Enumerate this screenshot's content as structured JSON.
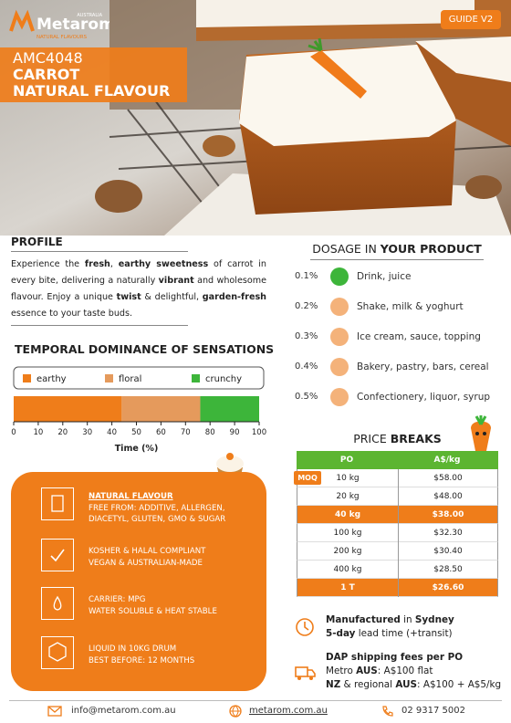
{
  "header": {
    "brand": "Metarom",
    "brand_region": "AUSTRALIA",
    "brand_tagline": "NATURAL FLAVOURS",
    "guide": "GUIDE V2",
    "code": "AMC4048",
    "name_lines": [
      "CARROT",
      "NATURAL FLAVOUR"
    ]
  },
  "profile": {
    "title": "PROFILE",
    "runs": [
      {
        "text": "Experience the "
      },
      {
        "text": "fresh",
        "bold": true
      },
      {
        "text": ", "
      },
      {
        "text": "earthy sweetness",
        "bold": true
      },
      {
        "text": " of carrot in every bite, delivering a naturally "
      },
      {
        "text": "vibrant",
        "bold": true
      },
      {
        "text": " and wholesome flavour. Enjoy a unique "
      },
      {
        "text": "twist",
        "bold": true
      },
      {
        "text": " & delightful, "
      },
      {
        "text": "garden-fresh",
        "bold": true
      },
      {
        "text": " essence to your taste buds."
      }
    ]
  },
  "tds": {
    "type": "bar",
    "stacked": true,
    "title": "TEMPORAL DOMINANCE OF SENSATIONS",
    "series": [
      {
        "name": "earthy",
        "color": "#ef7d1a",
        "values": [
          44
        ]
      },
      {
        "name": "floral",
        "color": "#e59a5c",
        "values": [
          32
        ]
      },
      {
        "name": "crunchy",
        "color": "#3db53a",
        "values": [
          24
        ]
      }
    ],
    "xlim": [
      0,
      100
    ],
    "xticks": [
      0,
      10,
      20,
      30,
      40,
      50,
      60,
      70,
      80,
      90,
      100
    ],
    "xlabel": "Time (%)"
  },
  "features": [
    {
      "lines": [
        "NATURAL FLAVOUR",
        "FREE FROM: ADDITIVE, ALLERGEN,",
        "DIACETYL,  GLUTEN, GMO & SUGAR"
      ]
    },
    {
      "lines": [
        "KOSHER & HALAL COMPLIANT",
        "VEGAN & AUSTRALIAN-MADE"
      ]
    },
    {
      "lines": [
        "CARRIER: MPG",
        "WATER SOLUBLE & HEAT STABLE"
      ]
    },
    {
      "lines": [
        "LIQUID IN 10KG DRUM",
        "BEST BEFORE: 12 MONTHS"
      ]
    }
  ],
  "dosage": {
    "title_runs": [
      {
        "text": "DOSAGE IN "
      },
      {
        "text": "YOUR PRODUCT",
        "bold": true
      }
    ],
    "items": [
      {
        "dose": "0.1%",
        "use": "Drink, juice"
      },
      {
        "dose": "0.2%",
        "use": "Shake, milk & yoghurt"
      },
      {
        "dose": "0.3%",
        "use": "Ice cream, sauce, topping"
      },
      {
        "dose": "0.4%",
        "use": "Bakery, pastry, bars, cereal"
      },
      {
        "dose": "0.5%",
        "use": "Confectionery, liquor, syrup"
      }
    ]
  },
  "prices": {
    "title_runs": [
      {
        "text": "PRICE "
      },
      {
        "text": "BREAKS",
        "bold": true
      }
    ],
    "columns": [
      "PO",
      "A$/kg"
    ],
    "rows": [
      {
        "po": "10 kg",
        "price": "$58.00",
        "highlight": false,
        "tag": "MOQ"
      },
      {
        "po": "20 kg",
        "price": "$48.00",
        "highlight": false
      },
      {
        "po": "40 kg",
        "price": "$38.00",
        "highlight": true
      },
      {
        "po": "100 kg",
        "price": "$32.30",
        "highlight": false
      },
      {
        "po": "200 kg",
        "price": "$30.40",
        "highlight": false
      },
      {
        "po": "400 kg",
        "price": "$28.50",
        "highlight": false
      },
      {
        "po": "1 T",
        "price": "$26.60",
        "highlight": true
      }
    ]
  },
  "shipping": {
    "lead": [
      {
        "runs": [
          {
            "text": "Manufactured",
            "bold": true
          },
          {
            "text": " in "
          },
          {
            "text": "Sydney",
            "bold": true
          }
        ]
      },
      {
        "runs": [
          {
            "text": "5-day",
            "bold": true
          },
          {
            "text": " lead time (+transit)"
          }
        ]
      }
    ],
    "fees": [
      {
        "runs": [
          {
            "text": "DAP shipping fees per PO",
            "bold": true
          }
        ]
      },
      {
        "runs": [
          {
            "text": "Metro "
          },
          {
            "text": "AUS",
            "bold": true
          },
          {
            "text": ": A$100 flat"
          }
        ]
      },
      {
        "runs": [
          {
            "text": "NZ",
            "bold": true
          },
          {
            "text": " & regional "
          },
          {
            "text": "AUS",
            "bold": true
          },
          {
            "text": ": A$100 + A$5/kg"
          }
        ]
      }
    ]
  },
  "footer": {
    "email": "info@metarom.com.au",
    "website": "metarom.com.au",
    "phone": "02 9317 5002"
  }
}
